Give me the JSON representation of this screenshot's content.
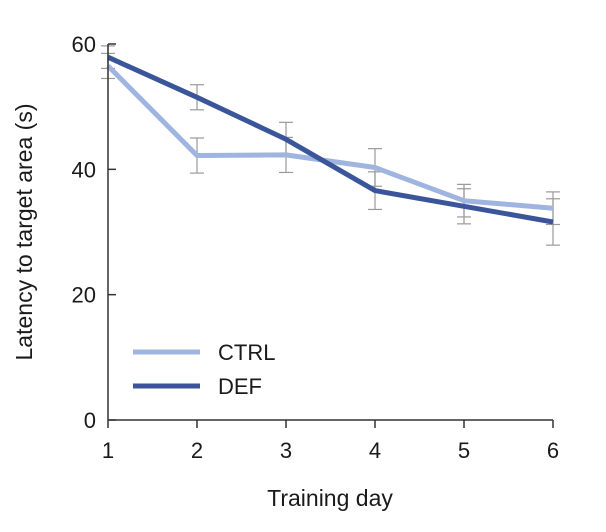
{
  "chart_data": {
    "type": "line",
    "title": "",
    "xlabel": "Training day",
    "ylabel": "Latency to target area (s)",
    "x": [
      1,
      2,
      3,
      4,
      5,
      6
    ],
    "xticks": [
      "1",
      "2",
      "3",
      "4",
      "5",
      "6"
    ],
    "yticks": [
      "0",
      "20",
      "40",
      "60"
    ],
    "ylim": [
      0,
      60
    ],
    "xlim": [
      1,
      6
    ],
    "grid": false,
    "legend_position": "bottom-left",
    "series": [
      {
        "name": "CTRL",
        "color": "#9fb4df",
        "values": [
          56.5,
          42.2,
          42.3,
          40.3,
          35.0,
          33.8
        ],
        "error": [
          2.0,
          2.8,
          2.8,
          3.0,
          2.6,
          2.6
        ]
      },
      {
        "name": "DEF",
        "color": "#3a559a",
        "values": [
          57.9,
          51.5,
          44.8,
          36.6,
          34.1,
          31.6
        ],
        "error": [
          1.8,
          2.0,
          2.7,
          3.0,
          2.8,
          3.7
        ]
      }
    ]
  }
}
